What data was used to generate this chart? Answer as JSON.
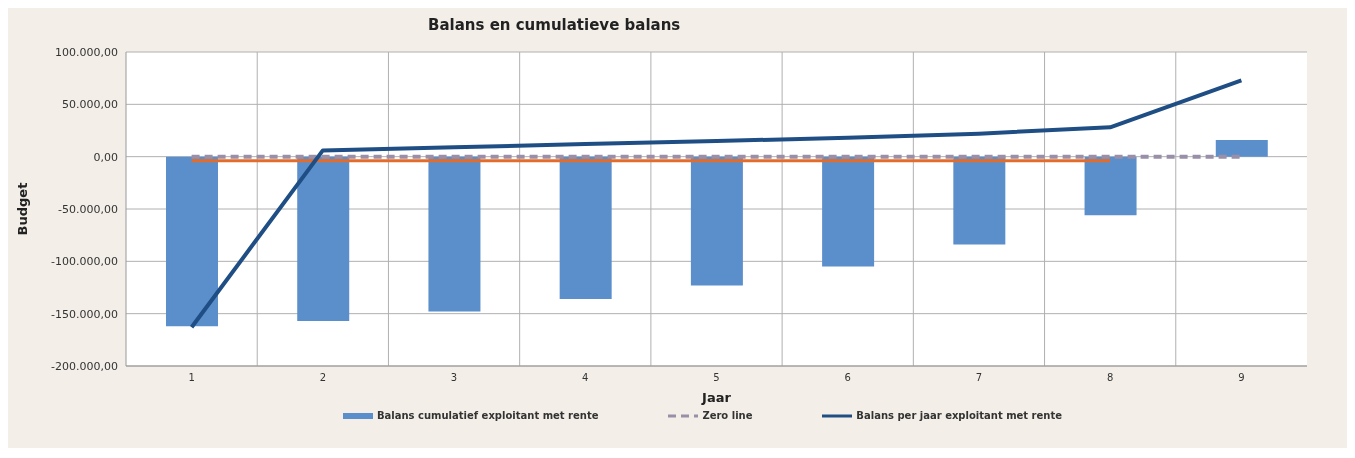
{
  "chart_data": {
    "type": "bar",
    "title": "Balans en cumulatieve balans",
    "xlabel": "Jaar",
    "ylabel": "Budget",
    "categories": [
      "1",
      "2",
      "3",
      "4",
      "5",
      "6",
      "7",
      "8",
      "9"
    ],
    "series": [
      {
        "name": "Balans cumulatief exploitant met rente",
        "color": "#5b8fcc",
        "values": [
          -162000,
          -157000,
          -148000,
          -136000,
          -123000,
          -105000,
          -84000,
          -56000,
          16000
        ]
      },
      {
        "name": "Zero line",
        "type": "line",
        "line_style": "dashed",
        "color": "#9a8fa8",
        "values": [
          0,
          0,
          0,
          0,
          0,
          0,
          0,
          0,
          0
        ]
      },
      {
        "type": "line",
        "color": "#e46c2a",
        "values": [
          -4000,
          -4000,
          -4000,
          -4000,
          -4000,
          -4000,
          -4000,
          -4000,
          null
        ]
      },
      {
        "name": "Balans per jaar exploitant met rente",
        "type": "line",
        "color": "#1f4e85",
        "values": [
          -163000,
          6000,
          9000,
          12000,
          15000,
          18000,
          22000,
          28000,
          73000
        ]
      }
    ],
    "ylim": [
      -200000,
      100000
    ],
    "yticks": [
      {
        "value": -200000,
        "label": "-200.000,00"
      },
      {
        "value": -150000,
        "label": "-150.000,00"
      },
      {
        "value": -100000,
        "label": "-100.000,00"
      },
      {
        "value": -50000,
        "label": "-50.000,00"
      },
      {
        "value": 0,
        "label": "0,00"
      },
      {
        "value": 50000,
        "label": "50.000,00"
      },
      {
        "value": 100000,
        "label": "100.000,00"
      }
    ],
    "grid": true,
    "legend": "bottom",
    "marker": "none"
  }
}
